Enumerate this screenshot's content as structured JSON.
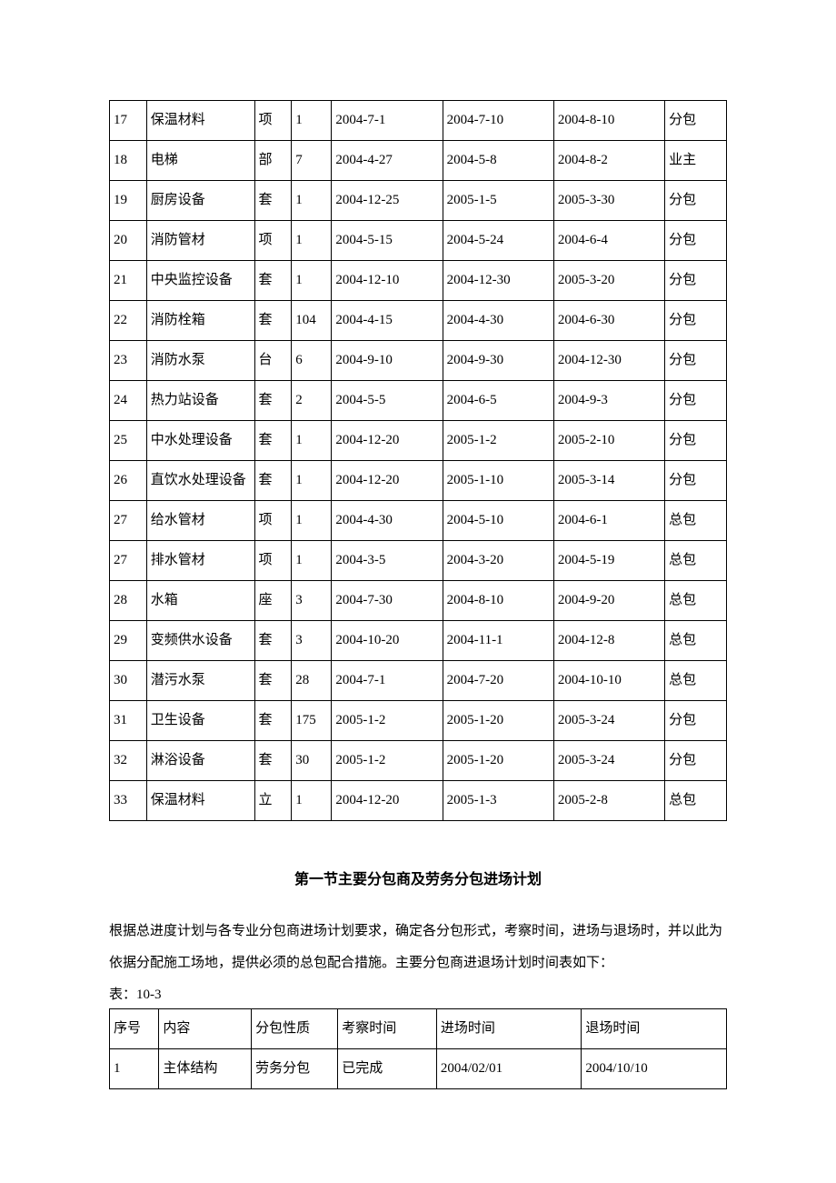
{
  "table1": {
    "rows": [
      [
        "17",
        "保温材料",
        "项",
        "1",
        "2004-7-1",
        "2004-7-10",
        "2004-8-10",
        "分包"
      ],
      [
        "18",
        "电梯",
        "部",
        "7",
        "2004-4-27",
        "2004-5-8",
        "2004-8-2",
        "业主"
      ],
      [
        "19",
        "厨房设备",
        "套",
        "1",
        "2004-12-25",
        "2005-1-5",
        "2005-3-30",
        "分包"
      ],
      [
        "20",
        "消防管材",
        "项",
        "1",
        "2004-5-15",
        "2004-5-24",
        "2004-6-4",
        "分包"
      ],
      [
        "21",
        "中央监控设备",
        "套",
        "1",
        "2004-12-10",
        "2004-12-30",
        "2005-3-20",
        "分包"
      ],
      [
        "22",
        "消防栓箱",
        "套",
        "104",
        "2004-4-15",
        "2004-4-30",
        "2004-6-30",
        "分包"
      ],
      [
        "23",
        "消防水泵",
        "台",
        "6",
        "2004-9-10",
        "2004-9-30",
        "2004-12-30",
        "分包"
      ],
      [
        "24",
        "热力站设备",
        "套",
        "2",
        "2004-5-5",
        "2004-6-5",
        "2004-9-3",
        "分包"
      ],
      [
        "25",
        "中水处理设备",
        "套",
        "1",
        "2004-12-20",
        "2005-1-2",
        "2005-2-10",
        "分包"
      ],
      [
        "26",
        "直饮水处理设备",
        "套",
        "1",
        "2004-12-20",
        "2005-1-10",
        "2005-3-14",
        "分包"
      ],
      [
        "27",
        "给水管材",
        "项",
        "1",
        "2004-4-30",
        "2004-5-10",
        "2004-6-1",
        "总包"
      ],
      [
        "27",
        "排水管材",
        "项",
        "1",
        "2004-3-5",
        "2004-3-20",
        "2004-5-19",
        "总包"
      ],
      [
        "28",
        "水箱",
        "座",
        "3",
        "2004-7-30",
        "2004-8-10",
        "2004-9-20",
        "总包"
      ],
      [
        "29",
        "变频供水设备",
        "套",
        "3",
        "2004-10-20",
        "2004-11-1",
        "2004-12-8",
        "总包"
      ],
      [
        "30",
        "潜污水泵",
        "套",
        "28",
        "2004-7-1",
        "2004-7-20",
        "2004-10-10",
        "总包"
      ],
      [
        "31",
        "卫生设备",
        "套",
        "175",
        "2005-1-2",
        "2005-1-20",
        "2005-3-24",
        "分包"
      ],
      [
        "32",
        "淋浴设备",
        "套",
        "30",
        "2005-1-2",
        "2005-1-20",
        "2005-3-24",
        "分包"
      ],
      [
        "33",
        "保温材料",
        "立",
        "1",
        "2004-12-20",
        "2005-1-3",
        "2005-2-8",
        "总包"
      ]
    ]
  },
  "heading": "第一节主要分包商及劳务分包进场计划",
  "paragraph": "根据总进度计划与各专业分包商进场计划要求，确定各分包形式，考察时间，进场与退场时，并以此为依据分配施工场地，提供必须的总包配合措施。主要分包商进退场计划时间表如下：",
  "table_label": "表：10-3",
  "table2": {
    "header": [
      "序号",
      "内容",
      "分包性质",
      "考察时间",
      "进场时间",
      "退场时间"
    ],
    "rows": [
      [
        "1",
        "主体结构",
        "劳务分包",
        "已完成",
        "2004/02/01",
        "2004/10/10"
      ]
    ]
  }
}
